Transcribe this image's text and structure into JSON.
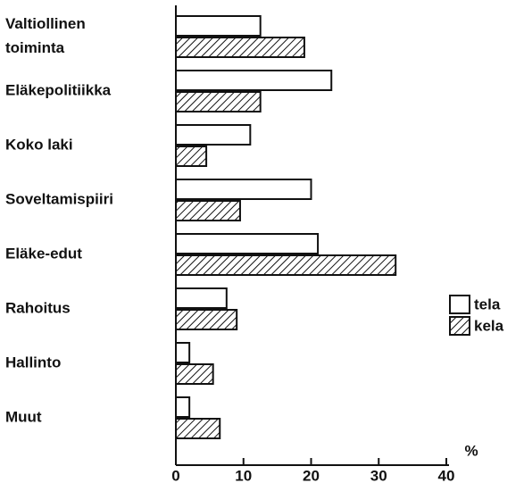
{
  "chart_data": {
    "type": "barh",
    "categories": [
      "Valtiollinen\ntoiminta",
      "Eläkepolitiikka",
      "Koko laki",
      "Soveltamispiiri",
      "Eläke-edut",
      "Rahoitus",
      "Hallinto",
      "Muut"
    ],
    "series": [
      {
        "name": "tela",
        "color": "#ffffff",
        "values": [
          12.5,
          23,
          11,
          20,
          21,
          7.5,
          2,
          2
        ]
      },
      {
        "name": "kela",
        "color": "hatch",
        "values": [
          19,
          12.5,
          4.5,
          9.5,
          32.5,
          9,
          5.5,
          6.5
        ]
      }
    ],
    "xlabel": "%",
    "xlim": [
      0,
      40
    ],
    "xticks": [
      0,
      10,
      20,
      30,
      40
    ],
    "legend": "right"
  }
}
